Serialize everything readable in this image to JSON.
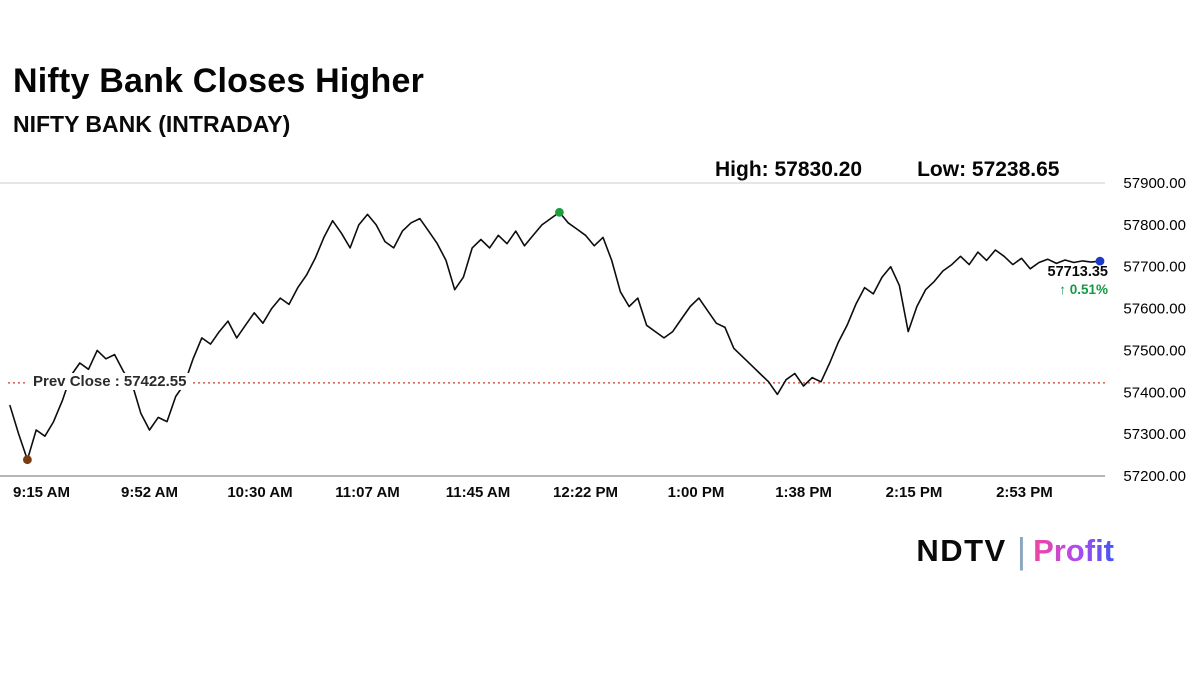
{
  "header": {
    "title": "Nifty Bank Closes Higher",
    "subtitle": "NIFTY BANK (INTRADAY)",
    "high_label": "High: 57830.20",
    "low_label": "Low: 57238.65"
  },
  "annotations": {
    "prev_close_label": "Prev Close : 57422.55",
    "last_price": "57713.35",
    "change_pct": "↑ 0.51%"
  },
  "logo": {
    "ndtv": "NDTV",
    "divider": "|",
    "profit": "Profit"
  },
  "chart_data": {
    "type": "line",
    "title": "NIFTY BANK (INTRADAY)",
    "x_unit": "minutes from 9:15 AM",
    "x_tick_labels": [
      "9:15 AM",
      "9:52 AM",
      "10:30 AM",
      "11:07 AM",
      "11:45 AM",
      "12:22 PM",
      "1:00 PM",
      "1:38 PM",
      "2:15 PM",
      "2:53 PM"
    ],
    "x_tick_minutes": [
      0,
      37,
      75,
      112,
      150,
      187,
      225,
      262,
      300,
      338
    ],
    "y_tick_labels": [
      "57900.00",
      "57800.00",
      "57700.00",
      "57600.00",
      "57500.00",
      "57400.00",
      "57300.00",
      "57200.00"
    ],
    "y_ticks": [
      57900,
      57800,
      57700,
      57600,
      57500,
      57400,
      57300,
      57200
    ],
    "ylim": [
      57200,
      57900
    ],
    "xlim": [
      0,
      375
    ],
    "step_minutes": 3,
    "values": [
      57368,
      57300,
      57239,
      57310,
      57295,
      57330,
      57380,
      57440,
      57470,
      57455,
      57500,
      57480,
      57490,
      57450,
      57420,
      57350,
      57310,
      57340,
      57330,
      57390,
      57420,
      57480,
      57530,
      57515,
      57545,
      57570,
      57530,
      57560,
      57590,
      57565,
      57600,
      57625,
      57610,
      57650,
      57680,
      57720,
      57770,
      57810,
      57780,
      57745,
      57800,
      57825,
      57800,
      57760,
      57745,
      57785,
      57805,
      57815,
      57785,
      57755,
      57715,
      57645,
      57675,
      57745,
      57765,
      57745,
      57775,
      57755,
      57785,
      57750,
      57775,
      57800,
      57815,
      57830,
      57805,
      57790,
      57775,
      57750,
      57770,
      57715,
      57640,
      57605,
      57625,
      57560,
      57545,
      57530,
      57545,
      57575,
      57605,
      57625,
      57595,
      57565,
      57555,
      57505,
      57485,
      57465,
      57445,
      57425,
      57395,
      57430,
      57445,
      57415,
      57435,
      57425,
      57470,
      57520,
      57560,
      57610,
      57650,
      57635,
      57675,
      57700,
      57655,
      57545,
      57605,
      57645,
      57665,
      57690,
      57705,
      57725,
      57705,
      57735,
      57715,
      57740,
      57725,
      57705,
      57720,
      57695,
      57710,
      57718,
      57708,
      57716,
      57710,
      57714,
      57711,
      57713.35
    ],
    "high": 57830.2,
    "low": 57238.65,
    "prev_close": 57422.55,
    "last": 57713.35,
    "markers": [
      {
        "name": "low-marker",
        "minute": 6,
        "value": 57239,
        "color": "#7a3b12"
      },
      {
        "name": "high-marker",
        "minute": 189,
        "value": 57830,
        "color": "#1e9e3e"
      },
      {
        "name": "close-marker",
        "minute": 375,
        "value": 57713.35,
        "color": "#1d39c8"
      }
    ],
    "line_color": "#0d0d0d",
    "prev_close_color": "#cc3b2f",
    "grid_color": "#cccccc",
    "axis_color": "#8a8a8a",
    "legend": "none",
    "grid": "top line only"
  }
}
